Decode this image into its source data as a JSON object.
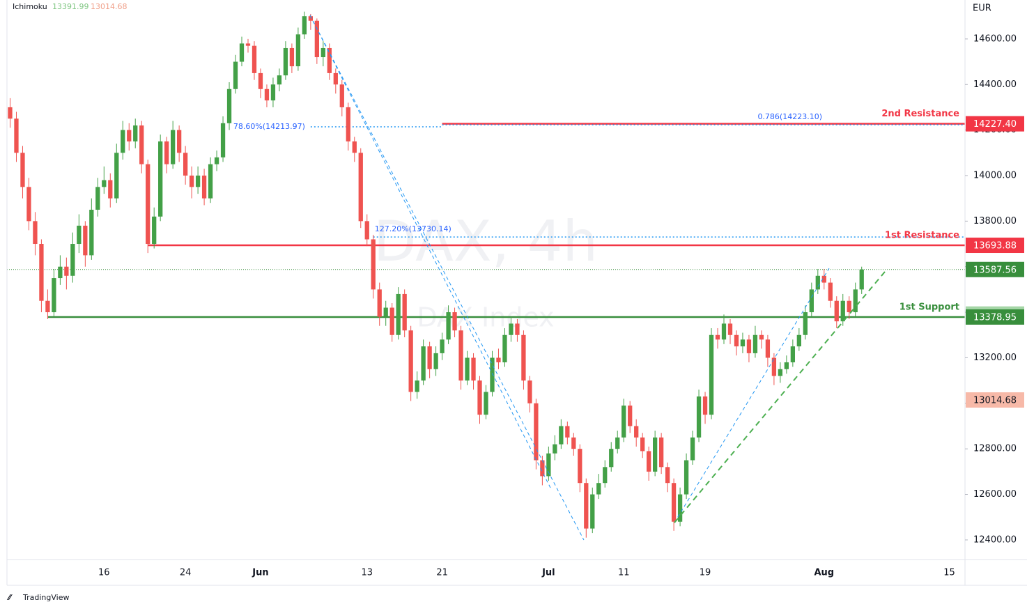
{
  "chart_data": {
    "type": "candlestick",
    "indicator": "Ichimoku",
    "indicator_values": [
      13391.99,
      13014.68
    ],
    "watermark": "DAX, 4h",
    "watermark_sub": "DAX Index",
    "currency": "EUR",
    "brand": "TradingView",
    "up_color": "#43a047",
    "down_color": "#ef5350",
    "categories": [
      null,
      null,
      null,
      null,
      null,
      null,
      null,
      null,
      null,
      null,
      null,
      null,
      null,
      null,
      null,
      "16",
      null,
      null,
      null,
      null,
      null,
      null,
      null,
      null,
      null,
      null,
      null,
      null,
      "24",
      null,
      null,
      null,
      null,
      null,
      null,
      null,
      null,
      null,
      null,
      null,
      "Jun",
      null,
      null,
      null,
      null,
      null,
      null,
      null,
      null,
      null,
      null,
      null,
      null,
      null,
      null,
      null,
      null,
      "13",
      null,
      null,
      null,
      null,
      null,
      null,
      null,
      null,
      null,
      null,
      null,
      "21",
      null,
      null,
      null,
      null,
      null,
      null,
      null,
      null,
      null,
      null,
      null,
      null,
      null,
      null,
      null,
      null,
      "Jul",
      null,
      null,
      null,
      null,
      null,
      null,
      null,
      null,
      null,
      null,
      null,
      "11",
      null,
      null,
      null,
      null,
      null,
      null,
      null,
      null,
      null,
      null,
      null,
      null,
      "19",
      null,
      null,
      null,
      null,
      null,
      null,
      null,
      null,
      null,
      null,
      null,
      null,
      null,
      null,
      null,
      null,
      null,
      null,
      "Aug",
      null,
      null,
      null,
      null,
      null,
      null,
      null,
      null,
      null,
      null,
      null,
      null,
      null,
      null,
      null,
      null,
      null,
      null,
      null,
      "15",
      null,
      null
    ],
    "open": [
      14300,
      14250,
      14100,
      13950,
      13800,
      13700,
      13450,
      13400,
      13550,
      13600,
      13560,
      13700,
      13780,
      13650,
      13850,
      13950,
      13980,
      13900,
      14100,
      14200,
      14150,
      14220,
      14050,
      13700,
      13820,
      14150,
      14050,
      14200,
      14100,
      14000,
      13950,
      14000,
      13900,
      14050,
      14080,
      14230,
      14380,
      14500,
      14580,
      14570,
      14450,
      14380,
      14330,
      14400,
      14440,
      14560,
      14480,
      14620,
      14700,
      14680,
      14520,
      14560,
      14450,
      14400,
      14300,
      14150,
      14100,
      13800,
      13720,
      13500,
      13380,
      13420,
      13300,
      13480,
      13320,
      13050,
      13100,
      13250,
      13150,
      13220,
      13280,
      13400,
      13320,
      13100,
      13200,
      13100,
      12950,
      13050,
      13200,
      13180,
      13300,
      13350,
      13300,
      13100,
      13000,
      12750,
      12680,
      12780,
      12820,
      12900,
      12850,
      12800,
      12650,
      12450,
      12600,
      12650,
      12720,
      12800,
      12850,
      12990,
      12900,
      12850,
      12790,
      12700,
      12850,
      12720,
      12650,
      12480,
      12600,
      12750,
      12850,
      13030,
      12950,
      13300,
      13280,
      13350,
      13300,
      13250,
      13280,
      13220,
      13300,
      13280,
      13200,
      13120,
      13150,
      13180,
      13250,
      13300,
      13400,
      13500,
      13560,
      13530,
      13450,
      13360,
      13450,
      13400,
      13500,
      null,
      null,
      null,
      null,
      null,
      null,
      null,
      null,
      null,
      null,
      null,
      null,
      null,
      null,
      null,
      null
    ],
    "high": [
      14340,
      14280,
      14130,
      13990,
      13840,
      13720,
      13500,
      13590,
      13650,
      13640,
      13750,
      13830,
      13800,
      13900,
      13990,
      14040,
      14010,
      14140,
      14240,
      14230,
      14250,
      14240,
      14070,
      13860,
      14180,
      14170,
      14240,
      14220,
      14130,
      14040,
      14040,
      14030,
      14080,
      14110,
      14260,
      14410,
      14530,
      14610,
      14600,
      14590,
      14470,
      14400,
      14430,
      14470,
      14590,
      14580,
      14650,
      14720,
      14710,
      14690,
      14590,
      14580,
      14470,
      14420,
      14320,
      14170,
      14120,
      13830,
      13740,
      13530,
      13450,
      13440,
      13510,
      13500,
      13340,
      13140,
      13280,
      13270,
      13250,
      13310,
      13430,
      13420,
      13340,
      13230,
      13220,
      13120,
      13080,
      13230,
      13240,
      13330,
      13380,
      13370,
      13320,
      13120,
      13020,
      12770,
      12810,
      12860,
      12930,
      12920,
      12870,
      12820,
      12670,
      12630,
      12690,
      12750,
      12830,
      12880,
      13020,
      13010,
      12930,
      12870,
      12810,
      12880,
      12870,
      12740,
      12670,
      12630,
      12780,
      12880,
      13060,
      13050,
      13330,
      13330,
      13390,
      13370,
      13320,
      13310,
      13300,
      13340,
      13320,
      13300,
      13220,
      13180,
      13210,
      13280,
      13330,
      13430,
      13530,
      13590,
      13590,
      13550,
      13470,
      13480,
      13470,
      13530,
      13600,
      null,
      null,
      null,
      null,
      null,
      null,
      null,
      null,
      null,
      null,
      null,
      null,
      null,
      null,
      null,
      null
    ],
    "low": [
      14210,
      14060,
      13900,
      13760,
      13650,
      13400,
      13370,
      13380,
      13520,
      13500,
      13530,
      13660,
      13600,
      13630,
      13820,
      13920,
      13860,
      13880,
      14070,
      14110,
      14120,
      14010,
      13660,
      13680,
      13800,
      14010,
      14030,
      14060,
      13960,
      13900,
      13920,
      13870,
      13880,
      14020,
      14060,
      14200,
      14360,
      14480,
      14540,
      14420,
      14340,
      14300,
      14300,
      14370,
      14420,
      14450,
      14460,
      14600,
      14640,
      14490,
      14480,
      14420,
      14360,
      14260,
      14110,
      14060,
      13770,
      13690,
      13460,
      13340,
      13340,
      13270,
      13280,
      13290,
      13010,
      13020,
      13080,
      13110,
      13120,
      13190,
      13260,
      13290,
      13060,
      13080,
      13060,
      12910,
      12930,
      13030,
      13150,
      13160,
      13270,
      13270,
      13060,
      12960,
      12710,
      12640,
      12660,
      12750,
      12800,
      12820,
      12770,
      12610,
      12410,
      12430,
      12580,
      12630,
      12700,
      12780,
      12830,
      12870,
      12810,
      12760,
      12660,
      12680,
      12690,
      12610,
      12440,
      12460,
      12580,
      12730,
      12830,
      12910,
      12930,
      13240,
      13260,
      13260,
      13210,
      13220,
      13180,
      13200,
      13240,
      13160,
      13080,
      13090,
      13130,
      13160,
      13230,
      13280,
      13380,
      13480,
      13500,
      13420,
      13330,
      13340,
      13370,
      13380,
      13480,
      null,
      null,
      null,
      null,
      null,
      null,
      null,
      null,
      null,
      null,
      null,
      null,
      null,
      null,
      null,
      null
    ],
    "close": [
      14250,
      14100,
      13950,
      13800,
      13700,
      13450,
      13400,
      13550,
      13600,
      13560,
      13700,
      13780,
      13650,
      13850,
      13950,
      13980,
      13900,
      14100,
      14200,
      14150,
      14220,
      14050,
      13700,
      13820,
      14150,
      14050,
      14200,
      14100,
      14000,
      13950,
      14000,
      13900,
      14050,
      14080,
      14230,
      14380,
      14500,
      14580,
      14570,
      14450,
      14380,
      14330,
      14400,
      14440,
      14560,
      14480,
      14620,
      14700,
      14680,
      14520,
      14560,
      14450,
      14400,
      14300,
      14150,
      14100,
      13800,
      13720,
      13500,
      13380,
      13420,
      13300,
      13480,
      13320,
      13050,
      13100,
      13250,
      13150,
      13220,
      13280,
      13400,
      13320,
      13100,
      13200,
      13100,
      12950,
      13050,
      13200,
      13180,
      13300,
      13350,
      13300,
      13100,
      13000,
      12750,
      12680,
      12780,
      12820,
      12900,
      12850,
      12800,
      12650,
      12450,
      12600,
      12650,
      12720,
      12800,
      12850,
      12990,
      12900,
      12850,
      12790,
      12700,
      12850,
      12720,
      12650,
      12480,
      12600,
      12750,
      12850,
      13030,
      12950,
      13300,
      13280,
      13350,
      13300,
      13250,
      13280,
      13220,
      13300,
      13280,
      13200,
      13120,
      13150,
      13180,
      13250,
      13300,
      13400,
      13500,
      13560,
      13530,
      13450,
      13360,
      13450,
      13400,
      13500,
      13587.56,
      null,
      null,
      null,
      null,
      null,
      null,
      null,
      null,
      null,
      null,
      null,
      null,
      null,
      null,
      null,
      null
    ],
    "ylim": [
      12314,
      14771
    ],
    "yticks": [
      {
        "value": 12400,
        "label": "12400.00"
      },
      {
        "value": 12600,
        "label": "12600.00"
      },
      {
        "value": 12800,
        "label": "12800.00"
      },
      {
        "value": 13000,
        "label": "13000.00"
      },
      {
        "value": 13200,
        "label": "13200.00"
      },
      {
        "value": 13400,
        "label": "13400.00"
      },
      {
        "value": 13600,
        "label": "13600.00"
      },
      {
        "value": 13800,
        "label": "13800.00"
      },
      {
        "value": 14000,
        "label": "14000.00"
      },
      {
        "value": 14200,
        "label": "14200.00"
      },
      {
        "value": 14400,
        "label": "14400.00"
      },
      {
        "value": 14600,
        "label": "14600.00"
      }
    ],
    "levels": [
      {
        "name": "2nd Resistance",
        "value": 14227.4,
        "label": "14227.40",
        "color": "#f23645"
      },
      {
        "name": "1st Resistance",
        "value": 13693.88,
        "label": "13693.88",
        "color": "#f23645"
      },
      {
        "name": "1st Support",
        "value": 13378.95,
        "label": "13378.95",
        "color": "#388e3c"
      }
    ],
    "last_price": {
      "value": 13587.56,
      "label": "13587.56",
      "color": "#388e3c"
    },
    "fibs": [
      {
        "label": "78.60%(14213.97)",
        "value": 14213.97
      },
      {
        "label": "0.786(14223.10)",
        "value": 14223.1
      },
      {
        "label": "127.20%(13730.14)",
        "value": 13730.14
      }
    ]
  }
}
